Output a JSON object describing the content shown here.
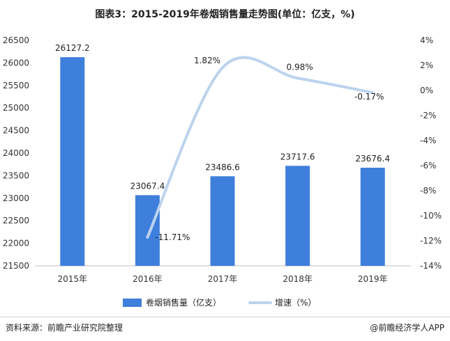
{
  "title": "图表3：2015-2019年卷烟销售量走势图(单位：亿支，%)",
  "footer": {
    "source": "资料来源：前瞻产业研究院整理",
    "brand": "@前瞻经济学人APP"
  },
  "chart_data": {
    "type": "bar",
    "categories": [
      "2015年",
      "2016年",
      "2017年",
      "2018年",
      "2019年"
    ],
    "series": [
      {
        "name": "卷烟销售量（亿支）",
        "type": "bar",
        "axis": "left",
        "color": "#3f7fdc",
        "values": [
          26127.2,
          23067.4,
          23486.6,
          23717.6,
          23676.4
        ],
        "labels": [
          "26127.2",
          "23067.4",
          "23486.6",
          "23717.6",
          "23676.4"
        ]
      },
      {
        "name": "增速（%）",
        "type": "line",
        "axis": "right",
        "color": "#bcd3ee",
        "values": [
          null,
          -11.71,
          1.82,
          0.98,
          -0.17
        ],
        "labels": [
          "",
          "-11.71%",
          "1.82%",
          "0.98%",
          "-0.17%"
        ]
      }
    ],
    "y_left": {
      "min": 21500,
      "max": 26500,
      "ticks": [
        "21500",
        "22000",
        "22500",
        "23000",
        "23500",
        "24000",
        "24500",
        "25000",
        "25500",
        "26000",
        "26500"
      ]
    },
    "y_right": {
      "min": -14,
      "max": 4,
      "ticks": [
        "-14%",
        "-12%",
        "-10%",
        "-8%",
        "-6%",
        "-4%",
        "-2%",
        "0%",
        "2%",
        "4%"
      ]
    },
    "legend_position": "bottom",
    "grid": false
  }
}
